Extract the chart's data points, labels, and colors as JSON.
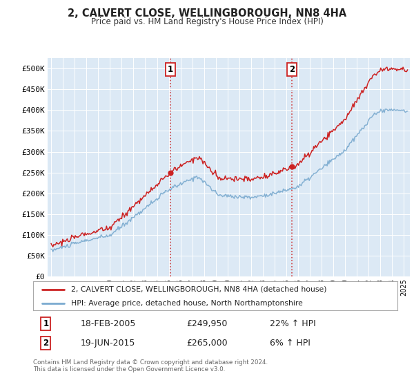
{
  "title": "2, CALVERT CLOSE, WELLINGBOROUGH, NN8 4HA",
  "subtitle": "Price paid vs. HM Land Registry's House Price Index (HPI)",
  "plot_bg_color": "#dce9f5",
  "ytick_labels": [
    "£0",
    "£50K",
    "£100K",
    "£150K",
    "£200K",
    "£250K",
    "£300K",
    "£350K",
    "£400K",
    "£450K",
    "£500K"
  ],
  "ytick_values": [
    0,
    50000,
    100000,
    150000,
    200000,
    250000,
    300000,
    350000,
    400000,
    450000,
    500000
  ],
  "ylim": [
    0,
    525000
  ],
  "legend_line1": "2, CALVERT CLOSE, WELLINGBOROUGH, NN8 4HA (detached house)",
  "legend_line2": "HPI: Average price, detached house, North Northamptonshire",
  "sale1_date": "18-FEB-2005",
  "sale1_price": "£249,950",
  "sale1_hpi": "22% ↑ HPI",
  "sale1_year": 2005.12,
  "sale1_value": 249950,
  "sale2_date": "19-JUN-2015",
  "sale2_price": "£265,000",
  "sale2_hpi": "6% ↑ HPI",
  "sale2_year": 2015.47,
  "sale2_value": 265000,
  "footer": "Contains HM Land Registry data © Crown copyright and database right 2024.\nThis data is licensed under the Open Government Licence v3.0.",
  "red_color": "#cc2222",
  "blue_color": "#7aaacf",
  "xlim_start": 1994.7,
  "xlim_end": 2025.5
}
